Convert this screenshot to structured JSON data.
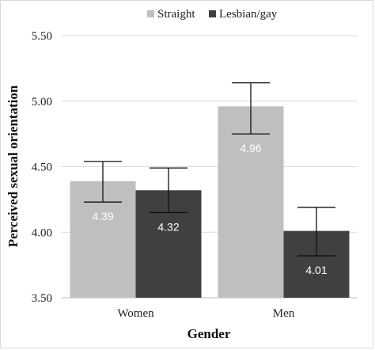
{
  "chart_data": {
    "type": "bar",
    "title": "",
    "xlabel": "Gender",
    "ylabel": "Perceived sexual orientation",
    "categories": [
      "Women",
      "Men"
    ],
    "ylim": [
      3.5,
      5.5
    ],
    "yticks": [
      "3.50",
      "4.00",
      "4.50",
      "5.00",
      "5.50"
    ],
    "grid": true,
    "legend_position": "top",
    "series": [
      {
        "name": "Straight",
        "color": "#bfbfbf",
        "values": [
          4.39,
          4.96
        ],
        "labels": [
          "4.39",
          "4.96"
        ],
        "error_low": [
          4.23,
          4.75
        ],
        "error_high": [
          4.54,
          5.14
        ]
      },
      {
        "name": "Lesbian/gay",
        "color": "#404040",
        "values": [
          4.32,
          4.01
        ],
        "labels": [
          "4.32",
          "4.01"
        ],
        "error_low": [
          4.15,
          3.82
        ],
        "error_high": [
          4.49,
          4.19
        ]
      }
    ]
  }
}
